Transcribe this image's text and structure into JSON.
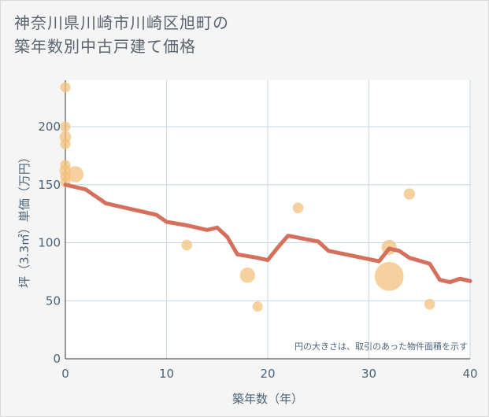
{
  "title_line1": "神奈川県川崎市川崎区旭町の",
  "title_line2": "築年数別中古戸建て価格",
  "chart_data": {
    "type": "scatter",
    "title": "神奈川県川崎市川崎区旭町の築年数別中古戸建て価格",
    "xlabel": "築年数（年）",
    "ylabel": "坪（3.3㎡）単価（万円）",
    "xlim": [
      0,
      40
    ],
    "ylim": [
      0,
      240
    ],
    "xticks": [
      0,
      10,
      20,
      30,
      40
    ],
    "yticks": [
      0,
      50,
      100,
      150,
      200
    ],
    "note": "円の大きさは、取引のあった物件面積を示す",
    "colors": {
      "bubble": "#f3c27c",
      "line": "#d4705c",
      "grid": "#c8d6e3",
      "background": "#ffffff"
    },
    "bubbles": [
      {
        "x": 0,
        "y": 234,
        "size": 1
      },
      {
        "x": 0,
        "y": 200,
        "size": 1
      },
      {
        "x": 0,
        "y": 191,
        "size": 1.3
      },
      {
        "x": 0,
        "y": 185,
        "size": 1
      },
      {
        "x": 0,
        "y": 167,
        "size": 1
      },
      {
        "x": 0,
        "y": 162,
        "size": 1.3
      },
      {
        "x": 0,
        "y": 157,
        "size": 1
      },
      {
        "x": 0,
        "y": 152,
        "size": 1
      },
      {
        "x": 1,
        "y": 159,
        "size": 2.5
      },
      {
        "x": 12,
        "y": 98,
        "size": 1.1
      },
      {
        "x": 18,
        "y": 72,
        "size": 2.2
      },
      {
        "x": 19,
        "y": 45,
        "size": 1
      },
      {
        "x": 23,
        "y": 130,
        "size": 1.1
      },
      {
        "x": 32,
        "y": 96,
        "size": 2.2
      },
      {
        "x": 32,
        "y": 71,
        "size": 8
      },
      {
        "x": 34,
        "y": 142,
        "size": 1.2
      },
      {
        "x": 36,
        "y": 47,
        "size": 1.1
      }
    ],
    "trend_line": [
      [
        0,
        150
      ],
      [
        2,
        146
      ],
      [
        4,
        134
      ],
      [
        6,
        130
      ],
      [
        9,
        124
      ],
      [
        10,
        118
      ],
      [
        12,
        115
      ],
      [
        14,
        111
      ],
      [
        15,
        113
      ],
      [
        16,
        105
      ],
      [
        17,
        90
      ],
      [
        19,
        87
      ],
      [
        20,
        85
      ],
      [
        21,
        96
      ],
      [
        22,
        106
      ],
      [
        25,
        101
      ],
      [
        26,
        93
      ],
      [
        31,
        84
      ],
      [
        32,
        95
      ],
      [
        33,
        93
      ],
      [
        34,
        87
      ],
      [
        36,
        82
      ],
      [
        37,
        68
      ],
      [
        38,
        66
      ],
      [
        39,
        69
      ],
      [
        40,
        67
      ]
    ]
  }
}
